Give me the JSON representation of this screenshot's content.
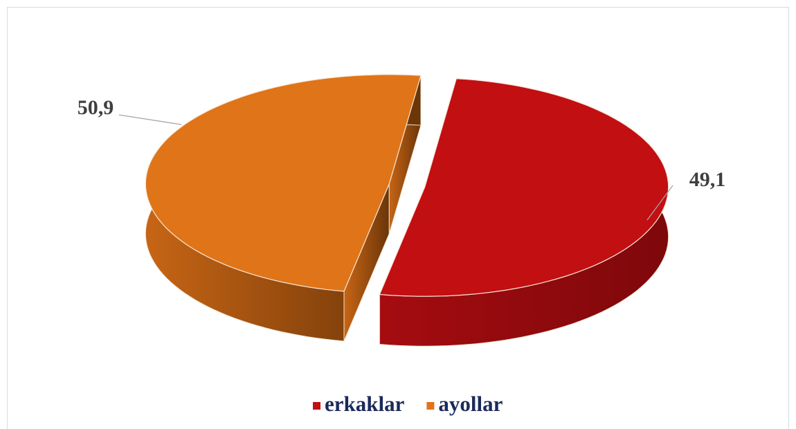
{
  "chart_data": {
    "type": "pie",
    "categories": [
      "erkaklar",
      "ayollar"
    ],
    "values": [
      50.9,
      49.1
    ],
    "value_labels": [
      "50,9",
      "49,1"
    ],
    "colors": [
      "#c20f12",
      "#e07418"
    ],
    "legend": "bottom"
  }
}
